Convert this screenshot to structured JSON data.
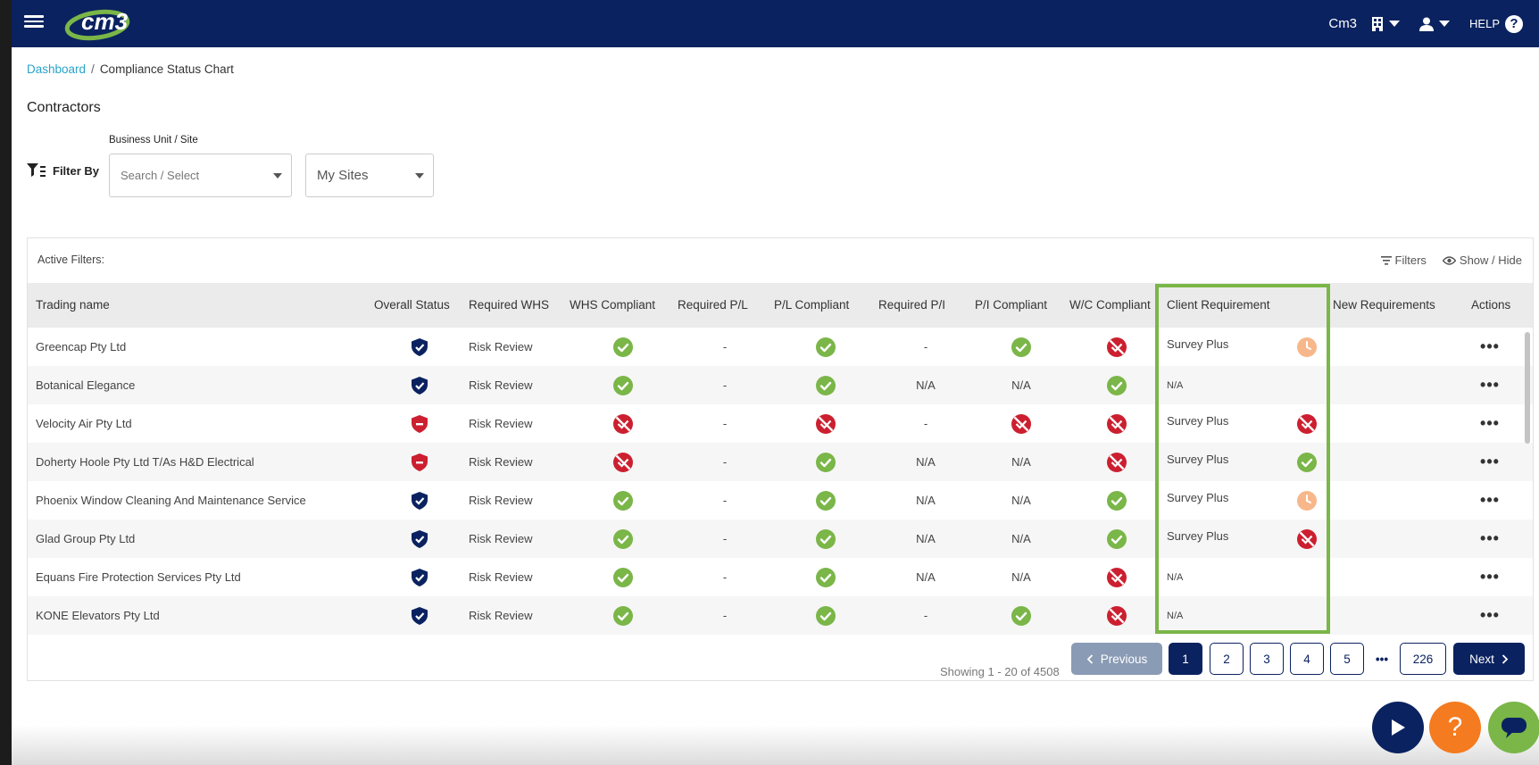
{
  "header": {
    "brand": "cm3",
    "account": "Cm3",
    "help_label": "HELP",
    "help_glyph": "?"
  },
  "breadcrumb": {
    "home": "Dashboard",
    "separator": "/",
    "current": "Compliance Status Chart"
  },
  "page_title": "Contractors",
  "filters": {
    "label": "Filter By",
    "business_unit_label": "Business Unit / Site",
    "business_unit_placeholder": "Search / Select",
    "sites_value": "My Sites"
  },
  "card": {
    "active_filters": "Active Filters:",
    "filters_button": "Filters",
    "show_hide_button": "Show / Hide"
  },
  "table": {
    "columns": [
      "Trading name",
      "Overall Status",
      "Required WHS",
      "WHS Compliant",
      "Required P/L",
      "P/L Compliant",
      "Required P/I",
      "P/I Compliant",
      "W/C Compliant",
      "Client Requirement",
      "New Requirements",
      "Actions"
    ],
    "rows": [
      {
        "name": "Greencap Pty Ltd",
        "overall": "compliant",
        "req_whs": "Risk Review",
        "whs": "check",
        "req_pl": "-",
        "pl": "check",
        "req_pi": "-",
        "pi": "check",
        "wc": "cross",
        "client_req": "Survey Plus",
        "client_status": "pending"
      },
      {
        "name": "Botanical Elegance",
        "overall": "compliant",
        "req_whs": "Risk Review",
        "whs": "check",
        "req_pl": "-",
        "pl": "check",
        "req_pi": "N/A",
        "pi": "N/A",
        "wc": "check",
        "client_req": "N/A",
        "client_status": "none"
      },
      {
        "name": "Velocity Air Pty Ltd",
        "overall": "non-compliant",
        "req_whs": "Risk Review",
        "whs": "cross",
        "req_pl": "-",
        "pl": "cross",
        "req_pi": "-",
        "pi": "cross",
        "wc": "cross",
        "client_req": "Survey Plus",
        "client_status": "cross"
      },
      {
        "name": "Doherty Hoole Pty Ltd T/As H&D Electrical",
        "overall": "non-compliant",
        "req_whs": "Risk Review",
        "whs": "cross",
        "req_pl": "-",
        "pl": "check",
        "req_pi": "N/A",
        "pi": "N/A",
        "wc": "cross",
        "client_req": "Survey Plus",
        "client_status": "check"
      },
      {
        "name": "Phoenix Window Cleaning And Maintenance Service",
        "overall": "compliant",
        "req_whs": "Risk Review",
        "whs": "check",
        "req_pl": "-",
        "pl": "check",
        "req_pi": "N/A",
        "pi": "N/A",
        "wc": "check",
        "client_req": "Survey Plus",
        "client_status": "pending"
      },
      {
        "name": "Glad Group Pty Ltd",
        "overall": "compliant",
        "req_whs": "Risk Review",
        "whs": "check",
        "req_pl": "-",
        "pl": "check",
        "req_pi": "N/A",
        "pi": "N/A",
        "wc": "check",
        "client_req": "Survey Plus",
        "client_status": "cross"
      },
      {
        "name": "Equans Fire Protection Services Pty Ltd",
        "overall": "compliant",
        "req_whs": "Risk Review",
        "whs": "check",
        "req_pl": "-",
        "pl": "check",
        "req_pi": "N/A",
        "pi": "N/A",
        "wc": "cross",
        "client_req": "N/A",
        "client_status": "none"
      },
      {
        "name": "KONE Elevators Pty Ltd",
        "overall": "compliant",
        "req_whs": "Risk Review",
        "whs": "check",
        "req_pl": "-",
        "pl": "check",
        "req_pi": "-",
        "pi": "check",
        "wc": "cross",
        "client_req": "N/A",
        "client_status": "none"
      }
    ],
    "actions_glyph": "•••"
  },
  "pagination": {
    "previous": "Previous",
    "next": "Next",
    "pages": [
      "1",
      "2",
      "3",
      "4",
      "5"
    ],
    "ellipsis": "•••",
    "last": "226",
    "current_page": "1",
    "showing": "Showing 1 - 20 of 4508"
  },
  "fab_help_glyph": "?",
  "colors": {
    "navy": "#0b2260",
    "green": "#7ab648",
    "red": "#cc1f2f",
    "pending": "#f7b78a",
    "orange": "#f47b20",
    "link": "#2aa3c9"
  }
}
